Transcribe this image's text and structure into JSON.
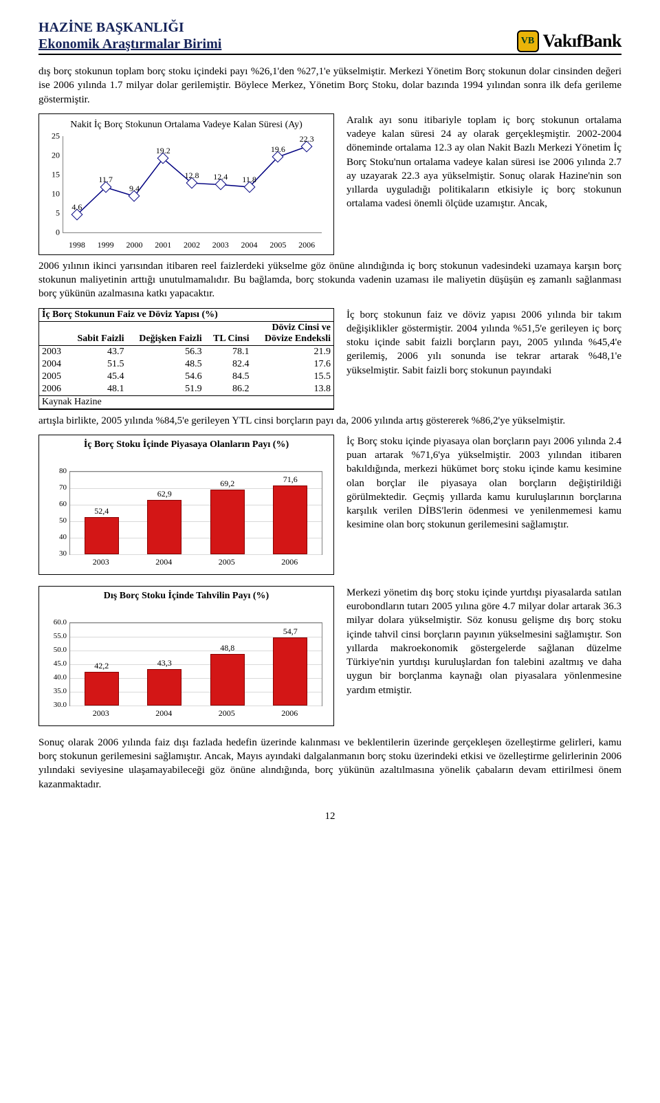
{
  "header": {
    "line1": "HAZİNE BAŞKANLIĞI",
    "line2": "Ekonomik Araştırmalar Birimi",
    "bank": "VakıfBank",
    "logo_text": "VB"
  },
  "para1": "dış borç stokunun toplam borç stoku içindeki payı %26,1'den %27,1'e yükselmiştir. Merkezi Yönetim Borç stokunun dolar cinsinden değeri ise 2006 yılında 1.7 milyar dolar gerilemiştir. Böylece Merkez, Yönetim Borç Stoku, dolar bazında 1994 yılından sonra ilk defa gerileme göstermiştir.",
  "line_chart": {
    "title": "Nakit İç Borç Stokunun Ortalama Vadeye Kalan Süresi (Ay)",
    "years": [
      "1998",
      "1999",
      "2000",
      "2001",
      "2002",
      "2003",
      "2004",
      "2005",
      "2006"
    ],
    "values": [
      4.6,
      11.7,
      9.4,
      19.2,
      12.8,
      12.4,
      11.8,
      19.6,
      22.3
    ],
    "ymin": 0,
    "ymax": 25,
    "ystep": 5,
    "line_color": "#000080",
    "marker_border": "#000080",
    "marker_fill": "#ffffff"
  },
  "right1": "Aralık ayı sonu itibariyle toplam iç borç stokunun ortalama vadeye kalan süresi 24 ay olarak gerçekleşmiştir. 2002-2004 döneminde ortalama 12.3 ay olan Nakit Bazlı Merkezi Yönetim İç Borç Stoku'nun ortalama vadeye kalan süresi ise 2006 yılında 2.7 ay uzayarak 22.3 aya yükselmiştir. Sonuç olarak Hazine'nin son yıllarda uyguladığı politikaların etkisiyle iç borç stokunun ortalama vadesi önemli ölçüde uzamıştır. Ancak,",
  "para2": "2006 yılının ikinci yarısından itibaren reel faizlerdeki yükselme göz önüne alındığında iç borç stokunun vadesindeki uzamaya karşın borç stokunun maliyetinin arttığı unutulmamalıdır. Bu bağlamda, borç stokunda vadenin uzaması ile maliyetin düşüşün eş zamanlı sağlanması borç yükünün azalmasına katkı yapacaktır.",
  "table": {
    "title": "İç Borç Stokunun Faiz ve Döviz Yapısı (%)",
    "cols": [
      "",
      "Sabit Faizli",
      "Değişken Faizli",
      "TL Cinsi",
      "Döviz Cinsi ve\nDövize Endeksli"
    ],
    "rows": [
      [
        "2003",
        "43.7",
        "56.3",
        "78.1",
        "21.9"
      ],
      [
        "2004",
        "51.5",
        "48.5",
        "82.4",
        "17.6"
      ],
      [
        "2005",
        "45.4",
        "54.6",
        "84.5",
        "15.5"
      ],
      [
        "2006",
        "48.1",
        "51.9",
        "86.2",
        "13.8"
      ]
    ],
    "source": "Kaynak Hazine"
  },
  "right2": "İç borç stokunun faiz ve döviz yapısı 2006 yılında bir takım değişiklikler göstermiştir. 2004 yılında %51,5'e gerileyen iç borç stoku içinde sabit faizli borçların payı, 2005 yılında %45,4'e gerilemiş, 2006 yılı sonunda ise tekrar artarak %48,1'e yükselmiştir. Sabit faizli borç stokunun payındaki",
  "para3": "artışla birlikte, 2005 yılında %84,5'e gerileyen YTL cinsi borçların payı da, 2006 yılında artış göstererek %86,2'ye yükselmiştir.",
  "bar1": {
    "title": "İç Borç Stoku İçinde Piyasaya Olanların Payı (%)",
    "categories": [
      "2003",
      "2004",
      "2005",
      "2006"
    ],
    "values": [
      52.4,
      62.9,
      69.2,
      71.6
    ],
    "labels": [
      "52,4",
      "62,9",
      "69,2",
      "71,6"
    ],
    "ymin": 30,
    "ymax": 80,
    "ystep": 10,
    "bar_color": "#d31616",
    "grid_color": "#d9d9d9"
  },
  "right3": "İç Borç stoku içinde piyasaya olan borçların payı 2006 yılında 2.4 puan artarak %71,6'ya yükselmiştir. 2003 yılından itibaren bakıldığında, merkezi hükümet borç stoku içinde kamu kesimine olan borçlar ile piyasaya olan borçların değiştirildiği görülmektedir. Geçmiş yıllarda kamu kuruluşlarının borçlarına karşılık verilen DİBS'lerin ödenmesi ve yenilenmemesi kamu kesimine olan borç stokunun gerilemesini sağlamıştır.",
  "bar2": {
    "title": "Dış Borç Stoku İçinde Tahvilin Payı (%)",
    "categories": [
      "2003",
      "2004",
      "2005",
      "2006"
    ],
    "values": [
      42.2,
      43.3,
      48.8,
      54.7
    ],
    "labels": [
      "42,2",
      "43,3",
      "48,8",
      "54,7"
    ],
    "ymin": 30,
    "ymax": 60,
    "ystep": 5,
    "yticks": [
      "30.0",
      "35.0",
      "40.0",
      "45.0",
      "50.0",
      "55.0",
      "60.0"
    ],
    "bar_color": "#d31616",
    "grid_color": "#d9d9d9"
  },
  "right4": "Merkezi yönetim dış borç stoku içinde yurtdışı piyasalarda satılan eurobondların tutarı 2005 yılına göre 4.7 milyar dolar artarak 36.3 milyar dolara yükselmiştir. Söz konusu gelişme dış borç stoku içinde tahvil cinsi borçların payının yükselmesini sağlamıştır. Son yıllarda makroekonomik göstergelerde sağlanan düzelme Türkiye'nin yurtdışı kuruluşlardan fon talebini azaltmış ve daha uygun bir borçlanma kaynağı olan piyasalara yönlenmesine yardım etmiştir.",
  "para4": "Sonuç olarak 2006 yılında faiz dışı fazlada hedefin üzerinde kalınması ve beklentilerin üzerinde gerçekleşen özelleştirme gelirleri, kamu borç stokunun gerilemesini sağlamıştır. Ancak, Mayıs ayındaki dalgalanmanın borç stoku üzerindeki etkisi ve özelleştirme gelirlerinin 2006 yılındaki seviyesine ulaşamayabileceği göz önüne alındığında, borç yükünün azaltılmasına yönelik çabaların devam ettirilmesi önem kazanmaktadır.",
  "page_num": "12"
}
